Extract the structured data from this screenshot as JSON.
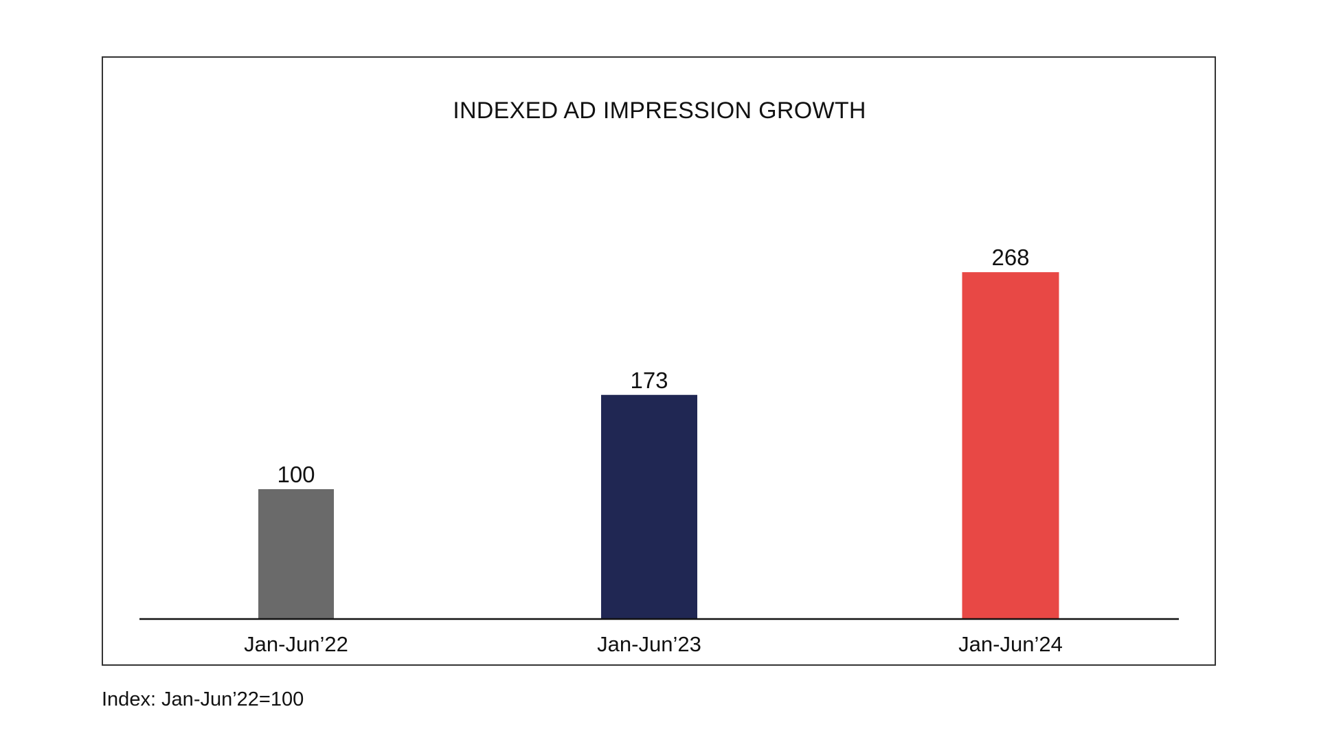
{
  "chart_data": {
    "type": "bar",
    "title": "INDEXED AD IMPRESSION GROWTH",
    "categories": [
      "Jan-Jun’22",
      "Jan-Jun’23",
      "Jan-Jun’24"
    ],
    "values": [
      100,
      173,
      268
    ],
    "data_labels": [
      "100",
      "173",
      "268"
    ],
    "colors": [
      "#6a6a6a",
      "#202753",
      "#e84845"
    ],
    "xlabel": "",
    "ylabel": "",
    "y_axis_visible": false,
    "grid": false,
    "legend": "none"
  },
  "footnote": "Index: Jan-Jun’22=100"
}
